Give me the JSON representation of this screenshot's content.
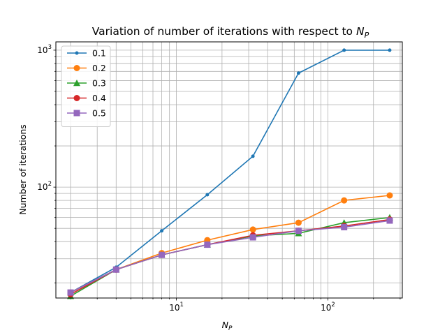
{
  "chart_data": {
    "type": "line",
    "title_main": "Variation of number of iterations with respect to ",
    "title_sym": "N",
    "title_sub": "P",
    "xlabel_sym": "N",
    "xlabel_sub": "P",
    "ylabel": "Number of iterations",
    "xscale": "log",
    "yscale": "log",
    "xlim": [
      1.6,
      310
    ],
    "ylim": [
      15.5,
      1150
    ],
    "x_major_ticks": [
      {
        "value": 10,
        "base": "10",
        "exp": "1"
      },
      {
        "value": 100,
        "base": "10",
        "exp": "2"
      }
    ],
    "y_major_ticks": [
      {
        "value": 100,
        "base": "10",
        "exp": "2"
      },
      {
        "value": 1000,
        "base": "10",
        "exp": "3"
      }
    ],
    "grid": "both-major-and-minor",
    "legend_position": "top-left",
    "series": [
      {
        "name": "0.1",
        "color": "#1f77b4",
        "marker": "point",
        "x": [
          2,
          4,
          8,
          16,
          32,
          64,
          128,
          256
        ],
        "y": [
          17,
          26,
          48,
          88,
          168,
          680,
          1000,
          1000
        ]
      },
      {
        "name": "0.2",
        "color": "#ff7f0e",
        "marker": "circle",
        "x": [
          2,
          4,
          8,
          16,
          32,
          64,
          128,
          256
        ],
        "y": [
          17,
          25,
          33,
          41,
          49,
          55,
          80,
          87
        ]
      },
      {
        "name": "0.3",
        "color": "#2ca02c",
        "marker": "triangle",
        "x": [
          2,
          4,
          8,
          16,
          32,
          64,
          128,
          256
        ],
        "y": [
          16,
          25,
          32,
          38,
          44,
          46,
          55,
          60
        ]
      },
      {
        "name": "0.4",
        "color": "#d62728",
        "marker": "circle",
        "x": [
          2,
          4,
          8,
          16,
          32,
          64,
          128,
          256
        ],
        "y": [
          16.5,
          25,
          32,
          38,
          44.5,
          48,
          52,
          58
        ]
      },
      {
        "name": "0.5",
        "color": "#9467bd",
        "marker": "square",
        "x": [
          2,
          4,
          8,
          16,
          32,
          64,
          128,
          256
        ],
        "y": [
          17,
          25,
          32,
          38,
          43,
          48,
          51,
          57
        ]
      }
    ]
  }
}
